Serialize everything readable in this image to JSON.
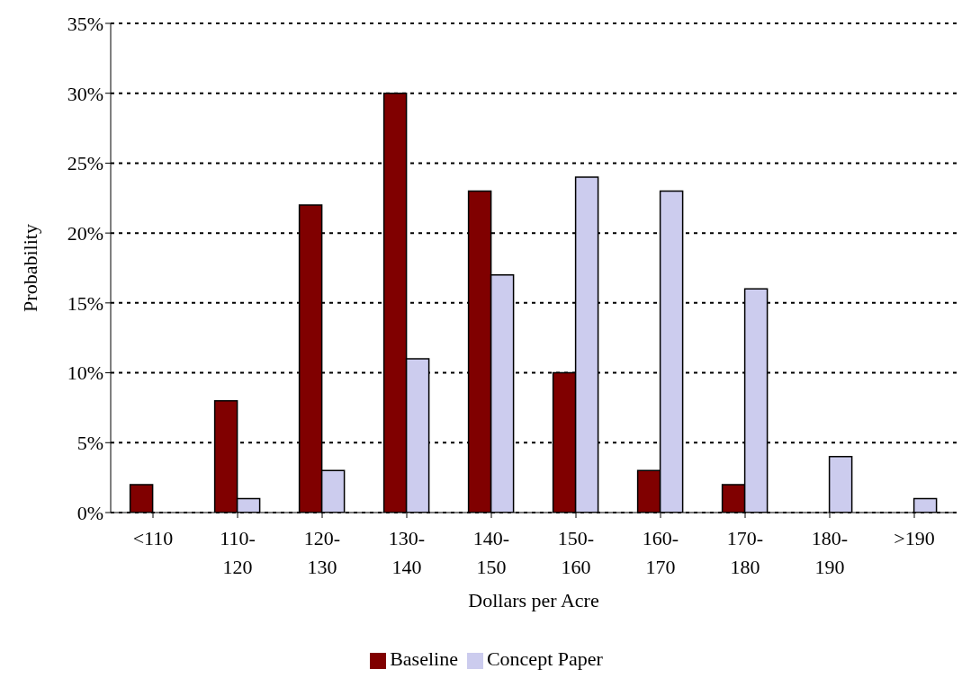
{
  "chart_data": {
    "type": "bar",
    "xlabel": "Dollars per Acre",
    "ylabel": "Probability",
    "categories": [
      "<110",
      "110-120",
      "120-130",
      "130-140",
      "140-150",
      "150-160",
      "160-170",
      "170-180",
      "180-190",
      ">190"
    ],
    "series": [
      {
        "name": "Baseline",
        "color": "#800000",
        "values": [
          2,
          8,
          22,
          30,
          23,
          10,
          3,
          2,
          0,
          0
        ]
      },
      {
        "name": "Concept Paper",
        "color": "#ccccee",
        "values": [
          0,
          1,
          3,
          11,
          17,
          24,
          23,
          16,
          4,
          1
        ]
      }
    ],
    "ylim": [
      0,
      35
    ],
    "yticks": [
      {
        "value": 0,
        "label": "0%"
      },
      {
        "value": 5,
        "label": "5%"
      },
      {
        "value": 10,
        "label": "10%"
      },
      {
        "value": 15,
        "label": "15%"
      },
      {
        "value": 20,
        "label": "20%"
      },
      {
        "value": 25,
        "label": "25%"
      },
      {
        "value": 30,
        "label": "30%"
      },
      {
        "value": 35,
        "label": "35%"
      }
    ],
    "grid": "y",
    "legend": "bottom"
  }
}
